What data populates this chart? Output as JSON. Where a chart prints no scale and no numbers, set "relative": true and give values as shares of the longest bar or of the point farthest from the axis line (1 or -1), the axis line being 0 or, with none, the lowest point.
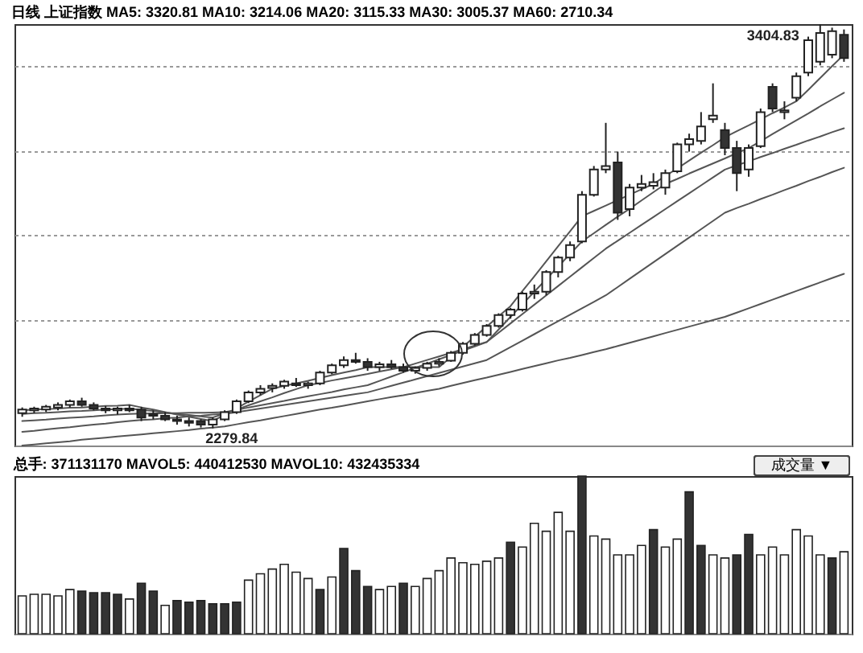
{
  "chart_data": [
    {
      "type": "candlestick",
      "title": "日线 上证指数 MA5: 3320.81 MA10: 3214.06 MA20: 3115.33 MA30: 3005.37 MA60: 2710.34",
      "categories": [
        null,
        null,
        null,
        null,
        null,
        null,
        null,
        null,
        null,
        null,
        null,
        null,
        null,
        null,
        null,
        null,
        null,
        null,
        null,
        null,
        null,
        null,
        null,
        null,
        null,
        null,
        null,
        null,
        null,
        null,
        null,
        null,
        null,
        null,
        null,
        null,
        null,
        null,
        null,
        null,
        null,
        null,
        null,
        null,
        null,
        null,
        null,
        null,
        null,
        null,
        null,
        null,
        null,
        null,
        null,
        null,
        null,
        null,
        null,
        null,
        null,
        null,
        null,
        null,
        null,
        null,
        null,
        null,
        null,
        null
      ],
      "ohlc": [
        [
          2322,
          2338,
          2312,
          2332
        ],
        [
          2330,
          2340,
          2322,
          2335
        ],
        [
          2332,
          2345,
          2325,
          2340
        ],
        [
          2338,
          2352,
          2330,
          2345
        ],
        [
          2345,
          2360,
          2338,
          2355
        ],
        [
          2355,
          2365,
          2340,
          2345
        ],
        [
          2345,
          2352,
          2330,
          2335
        ],
        [
          2335,
          2342,
          2322,
          2330
        ],
        [
          2330,
          2340,
          2318,
          2335
        ],
        [
          2335,
          2345,
          2325,
          2330
        ],
        [
          2332,
          2340,
          2300,
          2310
        ],
        [
          2320,
          2330,
          2305,
          2315
        ],
        [
          2315,
          2325,
          2300,
          2305
        ],
        [
          2305,
          2315,
          2290,
          2300
        ],
        [
          2300,
          2310,
          2285,
          2295
        ],
        [
          2300,
          2305,
          2282,
          2290
        ],
        [
          2290,
          2310,
          2279.84,
          2305
        ],
        [
          2305,
          2330,
          2300,
          2325
        ],
        [
          2325,
          2360,
          2320,
          2355
        ],
        [
          2355,
          2385,
          2350,
          2380
        ],
        [
          2380,
          2400,
          2372,
          2390
        ],
        [
          2392,
          2405,
          2380,
          2398
        ],
        [
          2398,
          2415,
          2390,
          2410
        ],
        [
          2405,
          2420,
          2395,
          2400
        ],
        [
          2400,
          2410,
          2390,
          2405
        ],
        [
          2405,
          2440,
          2400,
          2435
        ],
        [
          2435,
          2460,
          2430,
          2455
        ],
        [
          2455,
          2480,
          2448,
          2470
        ],
        [
          2470,
          2490,
          2460,
          2465
        ],
        [
          2465,
          2475,
          2440,
          2450
        ],
        [
          2450,
          2465,
          2440,
          2458
        ],
        [
          2458,
          2470,
          2445,
          2450
        ],
        [
          2450,
          2460,
          2435,
          2440
        ],
        [
          2440,
          2452,
          2432,
          2448
        ],
        [
          2448,
          2465,
          2440,
          2460
        ],
        [
          2460,
          2475,
          2452,
          2465
        ],
        [
          2468,
          2495,
          2465,
          2490
        ],
        [
          2490,
          2520,
          2485,
          2515
        ],
        [
          2515,
          2545,
          2510,
          2540
        ],
        [
          2540,
          2570,
          2535,
          2565
        ],
        [
          2565,
          2600,
          2560,
          2595
        ],
        [
          2595,
          2615,
          2585,
          2610
        ],
        [
          2610,
          2660,
          2605,
          2655
        ],
        [
          2655,
          2680,
          2640,
          2660
        ],
        [
          2660,
          2720,
          2650,
          2715
        ],
        [
          2715,
          2760,
          2700,
          2755
        ],
        [
          2755,
          2800,
          2745,
          2790
        ],
        [
          2800,
          2940,
          2795,
          2930
        ],
        [
          2930,
          3010,
          2925,
          3000
        ],
        [
          3000,
          3130,
          2990,
          3010
        ],
        [
          3020,
          3050,
          2860,
          2880
        ],
        [
          2890,
          2960,
          2870,
          2950
        ],
        [
          2950,
          2985,
          2940,
          2960
        ],
        [
          2955,
          2990,
          2945,
          2965
        ],
        [
          2950,
          3000,
          2930,
          2990
        ],
        [
          2995,
          3075,
          2990,
          3070
        ],
        [
          3070,
          3100,
          3050,
          3085
        ],
        [
          3080,
          3160,
          3070,
          3120
        ],
        [
          3140,
          3240,
          3130,
          3150
        ],
        [
          3110,
          3130,
          3040,
          3060
        ],
        [
          3060,
          3080,
          2940,
          2990
        ],
        [
          3000,
          3070,
          2980,
          3060
        ],
        [
          3065,
          3170,
          3060,
          3160
        ],
        [
          3230,
          3240,
          3160,
          3170
        ],
        [
          3160,
          3190,
          3140,
          3165
        ],
        [
          3200,
          3270,
          3190,
          3260
        ],
        [
          3270,
          3370,
          3260,
          3360
        ],
        [
          3300,
          3404.83,
          3290,
          3380
        ],
        [
          3320,
          3395,
          3310,
          3385
        ],
        [
          3375,
          3390,
          3300,
          3310
        ]
      ],
      "series": [
        {
          "type": "line",
          "color": "#555555",
          "values": [
            2330,
            2332,
            2333,
            2335,
            2337,
            2338,
            2340,
            2342,
            2343,
            2345,
            2338,
            2332,
            2325,
            2318,
            2312,
            2306,
            2300,
            2318,
            2336,
            2354,
            2372,
            2390,
            2398,
            2405,
            2412,
            2420,
            2428,
            2435,
            2442,
            2450,
            2450,
            2450,
            2450,
            2450,
            2450,
            2450,
            2478,
            2507,
            2535,
            2563,
            2592,
            2620,
            2662,
            2703,
            2745,
            2787,
            2828,
            2870,
            2885,
            2900,
            2915,
            2930,
            2945,
            2960,
            2982,
            3003,
            3025,
            3047,
            3068,
            3090,
            3107,
            3123,
            3140,
            3157,
            3173,
            3190,
            3222,
            3255,
            3288,
            3320
          ]
        },
        {
          "type": "line",
          "color": "#555555",
          "values": [
            2320,
            2322,
            2323,
            2325,
            2327,
            2328,
            2330,
            2332,
            2333,
            2335,
            2331,
            2328,
            2324,
            2320,
            2317,
            2313,
            2310,
            2321,
            2332,
            2344,
            2355,
            2366,
            2378,
            2389,
            2400,
            2406,
            2413,
            2419,
            2425,
            2431,
            2438,
            2444,
            2450,
            2460,
            2470,
            2480,
            2490,
            2500,
            2510,
            2520,
            2555,
            2590,
            2625,
            2660,
            2695,
            2730,
            2765,
            2800,
            2823,
            2846,
            2869,
            2891,
            2914,
            2937,
            2960,
            2974,
            2989,
            3003,
            3017,
            3031,
            3046,
            3060,
            3079,
            3099,
            3118,
            3137,
            3156,
            3176,
            3195,
            3214
          ]
        },
        {
          "type": "line",
          "color": "#555555",
          "values": [
            2300,
            2302,
            2304,
            2307,
            2309,
            2311,
            2313,
            2316,
            2318,
            2320,
            2321,
            2321,
            2322,
            2322,
            2323,
            2323,
            2324,
            2325,
            2331,
            2338,
            2344,
            2350,
            2356,
            2363,
            2369,
            2375,
            2381,
            2388,
            2394,
            2400,
            2412,
            2424,
            2436,
            2448,
            2460,
            2472,
            2484,
            2496,
            2508,
            2520,
            2546,
            2572,
            2598,
            2624,
            2650,
            2676,
            2702,
            2728,
            2754,
            2780,
            2802,
            2824,
            2846,
            2868,
            2890,
            2912,
            2934,
            2956,
            2978,
            3000,
            3012,
            3023,
            3035,
            3046,
            3058,
            3069,
            3081,
            3092,
            3104,
            3115
          ]
        },
        {
          "type": "line",
          "color": "#555555",
          "values": [
            2270,
            2273,
            2277,
            2280,
            2283,
            2287,
            2290,
            2293,
            2297,
            2300,
            2303,
            2305,
            2308,
            2310,
            2313,
            2315,
            2318,
            2320,
            2325,
            2330,
            2335,
            2340,
            2345,
            2350,
            2355,
            2360,
            2365,
            2370,
            2375,
            2380,
            2389,
            2398,
            2407,
            2416,
            2425,
            2434,
            2443,
            2452,
            2461,
            2470,
            2488,
            2506,
            2524,
            2542,
            2560,
            2578,
            2596,
            2614,
            2632,
            2650,
            2673,
            2696,
            2719,
            2742,
            2765,
            2788,
            2811,
            2834,
            2857,
            2880,
            2893,
            2905,
            2918,
            2930,
            2943,
            2955,
            2968,
            2980,
            2993,
            3005
          ]
        },
        {
          "type": "line",
          "color": "#555555",
          "values": [
            2232,
            2235,
            2238,
            2241,
            2244,
            2248,
            2251,
            2254,
            2257,
            2260,
            2263,
            2266,
            2269,
            2272,
            2275,
            2279,
            2282,
            2285,
            2291,
            2297,
            2302,
            2308,
            2314,
            2320,
            2326,
            2332,
            2337,
            2343,
            2349,
            2355,
            2361,
            2367,
            2372,
            2378,
            2384,
            2390,
            2398,
            2406,
            2414,
            2421,
            2429,
            2437,
            2445,
            2453,
            2461,
            2469,
            2476,
            2484,
            2492,
            2500,
            2509,
            2518,
            2527,
            2536,
            2545,
            2554,
            2563,
            2572,
            2581,
            2590,
            2602,
            2614,
            2626,
            2638,
            2650,
            2662,
            2674,
            2686,
            2698,
            2710
          ]
        }
      ],
      "annotations": [
        "3404.83",
        "2279.84"
      ],
      "yticks": [
        {
          "value": 2580,
          "label": null
        },
        {
          "value": 2820,
          "label": null
        },
        {
          "value": 3050,
          "label": null
        },
        {
          "value": 3290,
          "label": null
        }
      ],
      "grid": "y"
    },
    {
      "type": "bar",
      "relative": true,
      "title": "总手: 371131170 MAVOL5: 440412530 MAVOL10: 432435334",
      "annotations": [
        "成交量 ▼"
      ],
      "categories": [
        null,
        null,
        null,
        null,
        null,
        null,
        null,
        null,
        null,
        null,
        null,
        null,
        null,
        null,
        null,
        null,
        null,
        null,
        null,
        null,
        null,
        null,
        null,
        null,
        null,
        null,
        null,
        null,
        null,
        null,
        null,
        null,
        null,
        null,
        null,
        null,
        null,
        null,
        null,
        null,
        null,
        null,
        null,
        null,
        null,
        null,
        null,
        null,
        null,
        null,
        null,
        null,
        null,
        null,
        null,
        null,
        null,
        null,
        null,
        null,
        null,
        null,
        null,
        null,
        null,
        null,
        null,
        null,
        null,
        null
      ],
      "values": [
        0.24,
        0.25,
        0.25,
        0.24,
        0.28,
        0.27,
        0.26,
        0.26,
        0.25,
        0.22,
        0.32,
        0.27,
        0.18,
        0.21,
        0.2,
        0.21,
        0.19,
        0.19,
        0.2,
        0.34,
        0.38,
        0.41,
        0.44,
        0.39,
        0.35,
        0.28,
        0.36,
        0.54,
        0.4,
        0.3,
        0.28,
        0.3,
        0.32,
        0.3,
        0.35,
        0.4,
        0.48,
        0.45,
        0.44,
        0.46,
        0.48,
        0.58,
        0.55,
        0.7,
        0.65,
        0.77,
        0.65,
        1.0,
        0.62,
        0.6,
        0.5,
        0.5,
        0.56,
        0.66,
        0.55,
        0.6,
        0.9,
        0.56,
        0.5,
        0.48,
        0.5,
        0.63,
        0.5,
        0.55,
        0.5,
        0.66,
        0.62,
        0.5,
        0.48,
        0.52
      ],
      "colors": [
        "#ffffff",
        "#ffffff",
        "#ffffff",
        "#ffffff",
        "#ffffff",
        "#333333",
        "#333333",
        "#333333",
        "#333333",
        "#ffffff",
        "#333333",
        "#333333",
        "#ffffff",
        "#333333",
        "#333333",
        "#333333",
        "#333333",
        "#333333",
        "#333333",
        "#ffffff",
        "#ffffff",
        "#ffffff",
        "#ffffff",
        "#ffffff",
        "#ffffff",
        "#333333",
        "#ffffff",
        "#333333",
        "#333333",
        "#333333",
        "#ffffff",
        "#ffffff",
        "#333333",
        "#ffffff",
        "#ffffff",
        "#ffffff",
        "#ffffff",
        "#ffffff",
        "#ffffff",
        "#ffffff",
        "#ffffff",
        "#333333",
        "#ffffff",
        "#ffffff",
        "#ffffff",
        "#ffffff",
        "#ffffff",
        "#333333",
        "#ffffff",
        "#ffffff",
        "#ffffff",
        "#ffffff",
        "#ffffff",
        "#333333",
        "#ffffff",
        "#ffffff",
        "#333333",
        "#333333",
        "#ffffff",
        "#ffffff",
        "#333333",
        "#333333",
        "#ffffff",
        "#ffffff",
        "#ffffff",
        "#ffffff",
        "#ffffff",
        "#ffffff",
        "#333333",
        "#ffffff"
      ]
    }
  ]
}
